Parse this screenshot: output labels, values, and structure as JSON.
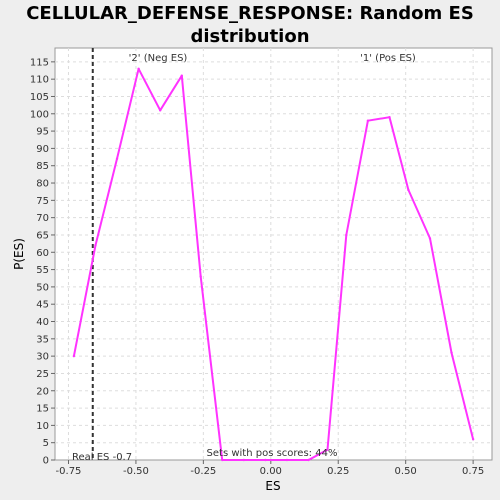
{
  "chart_data": {
    "type": "line",
    "title_lines": [
      "CELLULAR_DEFENSE_RESPONSE: Random ES",
      "distribution"
    ],
    "xlabel": "ES",
    "ylabel": "P(ES)",
    "xlim": [
      -0.8,
      0.82
    ],
    "ylim": [
      0,
      119
    ],
    "xticks": [
      "-0.75",
      "-0.50",
      "-0.25",
      "0.00",
      "0.25",
      "0.50",
      "0.75"
    ],
    "yticks": [
      "0",
      "5",
      "10",
      "15",
      "20",
      "25",
      "30",
      "35",
      "40",
      "45",
      "50",
      "55",
      "60",
      "65",
      "70",
      "75",
      "80",
      "85",
      "90",
      "95",
      "100",
      "105",
      "110",
      "115"
    ],
    "grid": true,
    "series": [
      {
        "color": "#ff33ff",
        "x": [
          -0.73,
          -0.65,
          -0.57,
          -0.49,
          -0.41,
          -0.33,
          -0.26,
          -0.18,
          -0.1,
          -0.02,
          0.06,
          0.14,
          0.21,
          0.28,
          0.36,
          0.44,
          0.51,
          0.59,
          0.67,
          0.75
        ],
        "y": [
          30,
          62,
          87,
          113,
          101,
          111,
          53,
          0,
          0,
          0,
          0,
          0,
          3,
          65,
          98,
          99,
          78,
          64,
          31,
          6
        ]
      }
    ],
    "real_es": -0.66,
    "annotations": {
      "neg_label": "'2' (Neg ES)",
      "pos_label": "'1' (Pos ES)",
      "real_es_label": "Real ES -0.7",
      "pos_scores": "Sets with pos scores: 44%"
    },
    "colors": {
      "neg_label": "#3333cc",
      "pos_label": "#cc3333",
      "real_es_line": "#333333",
      "grid": "#dddddd"
    }
  }
}
